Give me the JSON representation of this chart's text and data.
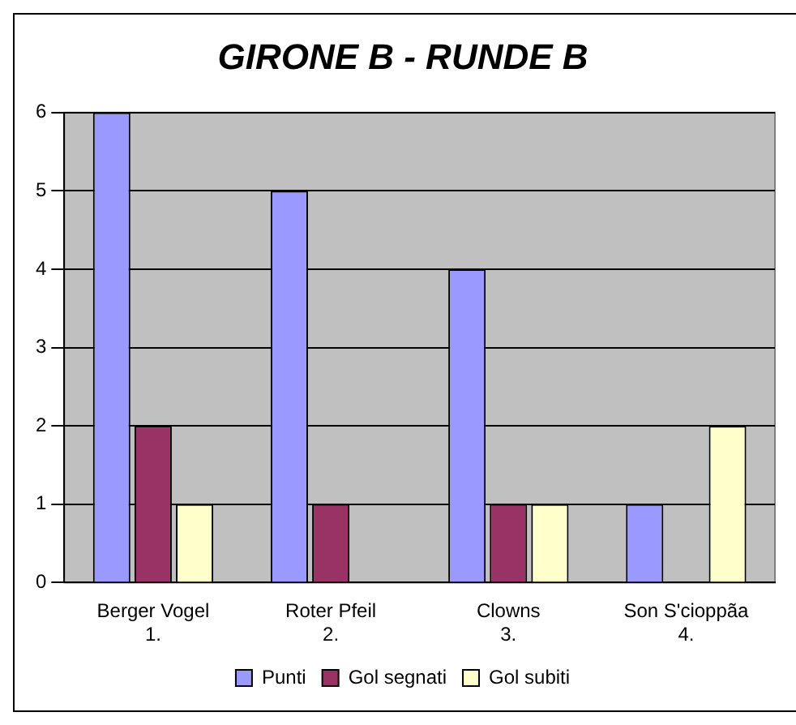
{
  "chart_data": {
    "type": "bar",
    "title": "GIRONE B - RUNDE B",
    "categories": [
      "Berger Vogel\n1.",
      "Roter Pfeil\n2.",
      "Clowns\n3.",
      "Son S'cioppãa\n4."
    ],
    "series": [
      {
        "name": "Punti",
        "color": "#9999ff",
        "values": [
          6,
          5,
          4,
          1
        ]
      },
      {
        "name": "Gol segnati",
        "color": "#993366",
        "values": [
          2,
          1,
          1,
          0
        ]
      },
      {
        "name": "Gol subiti",
        "color": "#ffffcc",
        "values": [
          1,
          0,
          1,
          2
        ]
      }
    ],
    "ylim": [
      0,
      6
    ],
    "yticks": [
      0,
      1,
      2,
      3,
      4,
      5,
      6
    ],
    "grid": "y",
    "legend": "bottom"
  }
}
